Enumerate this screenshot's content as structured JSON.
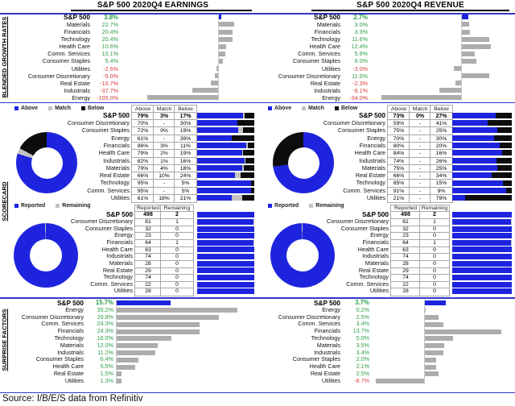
{
  "titles": {
    "earnings": "S&P 500 2020Q4 EARNINGS",
    "revenue": "S&P 500 2020Q4 REVENUE"
  },
  "section_labels": {
    "growth": "BLENDED GROWTH RATES",
    "scorecard": "SCORECARD",
    "surprise": "SURPRISE FACTORS"
  },
  "source": "Source: I/B/E/S data from Refinitiv",
  "legends": {
    "amb": [
      {
        "label": "Above",
        "color_key": "accent_blue"
      },
      {
        "label": "Match",
        "color_key": "match_gray"
      },
      {
        "label": "Below",
        "color_key": "below_black"
      }
    ],
    "rr": [
      {
        "label": "Reported",
        "color_key": "accent_blue"
      },
      {
        "label": "Remaining",
        "color_key": "match_gray"
      }
    ]
  },
  "colors": {
    "accent_blue": "#1e24de",
    "bar_gray": "#adadad",
    "match_gray": "#c3c3c3",
    "below_black": "#0d0d0d",
    "rule_blue": "#3138cd",
    "positive_green": "#2e9e48",
    "negative_red": "#d64040",
    "axis_gray": "#c9c9c9"
  },
  "chart_data": [
    {
      "id": "earnings_blended_growth",
      "type": "bar",
      "orientation": "horizontal",
      "title": "S&P 500 2020Q4 EARNINGS",
      "section": "BLENDED GROWTH RATES",
      "unit": "%",
      "categories": [
        "S&P 500",
        "Materials",
        "Financials",
        "Technology",
        "Health Care",
        "Comm. Services",
        "Consumer Staples",
        "Utilities",
        "Consumer Discretionary",
        "Real Estate",
        "Industrials",
        "Energy"
      ],
      "values": [
        3.8,
        22.7,
        20.4,
        20.4,
        10.6,
        10.1,
        5.4,
        -2.6,
        -5.0,
        -10.7,
        -37.7,
        -105.0
      ],
      "value_labels": [
        "3.8%",
        "22.7%",
        "20.4%",
        "20.4%",
        "10.6%",
        "10.1%",
        "5.4%",
        "-2.6%",
        "-5.0%",
        "-10.7%",
        "-37.7%",
        "-105.0%"
      ]
    },
    {
      "id": "revenue_blended_growth",
      "type": "bar",
      "orientation": "horizontal",
      "title": "S&P 500 2020Q4 REVENUE",
      "section": "BLENDED GROWTH RATES",
      "unit": "%",
      "categories": [
        "S&P 500",
        "Materials",
        "Financials",
        "Technology",
        "Health Care",
        "Comm. Services",
        "Consumer Staples",
        "Utilities",
        "Consumer Discretionary",
        "Real Estate",
        "Industrials",
        "Energy"
      ],
      "values": [
        2.7,
        3.0,
        3.3,
        11.6,
        12.4,
        5.6,
        6.0,
        -3.0,
        11.5,
        -2.3,
        -9.1,
        -34.0
      ],
      "value_labels": [
        "2.7%",
        "3.0%",
        "3.3%",
        "11.6%",
        "12.4%",
        "5.6%",
        "6.0%",
        "-3.0%",
        "11.5%",
        "-2.3%",
        "-9.1%",
        "-34.0%"
      ]
    },
    {
      "id": "earnings_scorecard",
      "type": "table",
      "title": "S&P 500 2020Q4 EARNINGS",
      "section": "SCORECARD",
      "columns": [
        "Above",
        "Match",
        "Below"
      ],
      "rows": [
        {
          "label": "S&P 500",
          "above": 79,
          "match": 3,
          "below": 17,
          "display": [
            "79%",
            "3%",
            "17%"
          ]
        },
        {
          "label": "Consumer Discretionary",
          "above": 70,
          "match": 0,
          "below": 30,
          "display": [
            "70%",
            "-",
            "30%"
          ]
        },
        {
          "label": "Consumer Staples",
          "above": 72,
          "match": 9,
          "below": 19,
          "display": [
            "72%",
            "9%",
            "19%"
          ]
        },
        {
          "label": "Energy",
          "above": 61,
          "match": 0,
          "below": 39,
          "display": [
            "61%",
            "-",
            "39%"
          ]
        },
        {
          "label": "Financials",
          "above": 86,
          "match": 3,
          "below": 11,
          "display": [
            "86%",
            "3%",
            "11%"
          ]
        },
        {
          "label": "Health Care",
          "above": 79,
          "match": 2,
          "below": 19,
          "display": [
            "79%",
            "2%",
            "19%"
          ]
        },
        {
          "label": "Industrials",
          "above": 82,
          "match": 1,
          "below": 16,
          "display": [
            "82%",
            "1%",
            "16%"
          ]
        },
        {
          "label": "Materials",
          "above": 79,
          "match": 4,
          "below": 18,
          "display": [
            "79%",
            "4%",
            "18%"
          ]
        },
        {
          "label": "Real Estate",
          "above": 66,
          "match": 10,
          "below": 24,
          "display": [
            "66%",
            "10%",
            "24%"
          ]
        },
        {
          "label": "Technology",
          "above": 95,
          "match": 0,
          "below": 5,
          "display": [
            "95%",
            "-",
            "5%"
          ]
        },
        {
          "label": "Comm. Services",
          "above": 95,
          "match": 0,
          "below": 5,
          "display": [
            "95%",
            "-",
            "5%"
          ]
        },
        {
          "label": "Utilities",
          "above": 61,
          "match": 18,
          "below": 21,
          "display": [
            "61%",
            "18%",
            "21%"
          ]
        }
      ],
      "donut": {
        "segments": [
          "Above",
          "Match",
          "Below"
        ],
        "values": [
          79,
          3,
          17
        ]
      }
    },
    {
      "id": "revenue_scorecard",
      "type": "table",
      "title": "S&P 500 2020Q4 REVENUE",
      "section": "SCORECARD",
      "columns": [
        "Above",
        "Match",
        "Below"
      ],
      "rows": [
        {
          "label": "S&P 500",
          "above": 73,
          "match": 0,
          "below": 27,
          "display": [
            "73%",
            "0%",
            "27%"
          ]
        },
        {
          "label": "Consumer Discretionary",
          "above": 59,
          "match": 0,
          "below": 41,
          "display": [
            "59%",
            "-",
            "41%"
          ]
        },
        {
          "label": "Consumer Staples",
          "above": 75,
          "match": 0,
          "below": 25,
          "display": [
            "75%",
            "-",
            "25%"
          ]
        },
        {
          "label": "Energy",
          "above": 70,
          "match": 0,
          "below": 30,
          "display": [
            "70%",
            "-",
            "30%"
          ]
        },
        {
          "label": "Financials",
          "above": 80,
          "match": 0,
          "below": 20,
          "display": [
            "80%",
            "-",
            "20%"
          ]
        },
        {
          "label": "Health Care",
          "above": 84,
          "match": 0,
          "below": 16,
          "display": [
            "84%",
            "-",
            "16%"
          ]
        },
        {
          "label": "Industrials",
          "above": 74,
          "match": 0,
          "below": 26,
          "display": [
            "74%",
            "-",
            "26%"
          ]
        },
        {
          "label": "Materials",
          "above": 75,
          "match": 0,
          "below": 25,
          "display": [
            "75%",
            "-",
            "25%"
          ]
        },
        {
          "label": "Real Estate",
          "above": 66,
          "match": 0,
          "below": 34,
          "display": [
            "66%",
            "-",
            "34%"
          ]
        },
        {
          "label": "Technology",
          "above": 85,
          "match": 0,
          "below": 15,
          "display": [
            "85%",
            "-",
            "15%"
          ]
        },
        {
          "label": "Comm. Services",
          "above": 91,
          "match": 0,
          "below": 9,
          "display": [
            "91%",
            "-",
            "9%"
          ]
        },
        {
          "label": "Utilities",
          "above": 21,
          "match": 0,
          "below": 79,
          "display": [
            "21%",
            "-",
            "79%"
          ]
        }
      ],
      "donut": {
        "segments": [
          "Above",
          "Match",
          "Below"
        ],
        "values": [
          73,
          0,
          27
        ]
      }
    },
    {
      "id": "earnings_reported",
      "type": "table",
      "title": "S&P 500 2020Q4 EARNINGS",
      "section": "SCORECARD",
      "columns": [
        "Reported",
        "Remaining"
      ],
      "rows": [
        {
          "label": "S&P 500",
          "reported": 498,
          "remaining": 2
        },
        {
          "label": "Consumer Discretionary",
          "reported": 61,
          "remaining": 1
        },
        {
          "label": "Consumer Staples",
          "reported": 32,
          "remaining": 0
        },
        {
          "label": "Energy",
          "reported": 23,
          "remaining": 0
        },
        {
          "label": "Financials",
          "reported": 64,
          "remaining": 1
        },
        {
          "label": "Health Care",
          "reported": 63,
          "remaining": 0
        },
        {
          "label": "Industrials",
          "reported": 74,
          "remaining": 0
        },
        {
          "label": "Materials",
          "reported": 28,
          "remaining": 0
        },
        {
          "label": "Real Estate",
          "reported": 29,
          "remaining": 0
        },
        {
          "label": "Technology",
          "reported": 74,
          "remaining": 0
        },
        {
          "label": "Comm. Services",
          "reported": 22,
          "remaining": 0
        },
        {
          "label": "Utilities",
          "reported": 28,
          "remaining": 0
        }
      ],
      "donut": {
        "segments": [
          "Reported",
          "Remaining"
        ],
        "values": [
          498,
          2
        ]
      }
    },
    {
      "id": "revenue_reported",
      "type": "table",
      "title": "S&P 500 2020Q4 REVENUE",
      "section": "SCORECARD",
      "columns": [
        "Reported",
        "Remaining"
      ],
      "rows": [
        {
          "label": "S&P 500",
          "reported": 498,
          "remaining": 2
        },
        {
          "label": "Consumer Discretionary",
          "reported": 61,
          "remaining": 1
        },
        {
          "label": "Consumer Staples",
          "reported": 32,
          "remaining": 0
        },
        {
          "label": "Energy",
          "reported": 23,
          "remaining": 0
        },
        {
          "label": "Financials",
          "reported": 64,
          "remaining": 1
        },
        {
          "label": "Health Care",
          "reported": 63,
          "remaining": 0
        },
        {
          "label": "Industrials",
          "reported": 74,
          "remaining": 0
        },
        {
          "label": "Materials",
          "reported": 28,
          "remaining": 0
        },
        {
          "label": "Real Estate",
          "reported": 29,
          "remaining": 0
        },
        {
          "label": "Technology",
          "reported": 74,
          "remaining": 0
        },
        {
          "label": "Comm. Services",
          "reported": 22,
          "remaining": 0
        },
        {
          "label": "Utilities",
          "reported": 28,
          "remaining": 0
        }
      ],
      "donut": {
        "segments": [
          "Reported",
          "Remaining"
        ],
        "values": [
          498,
          2
        ]
      }
    },
    {
      "id": "earnings_surprise",
      "type": "bar",
      "orientation": "horizontal",
      "title": "S&P 500 2020Q4 EARNINGS",
      "section": "SURPRISE FACTORS",
      "unit": "%",
      "categories": [
        "S&P 500",
        "Energy",
        "Consumer Discretionary",
        "Comm. Services",
        "Financials",
        "Technology",
        "Materials",
        "Industrials",
        "Consumer Staples",
        "Health Care",
        "Real Estate",
        "Utilities"
      ],
      "values": [
        15.7,
        35.2,
        29.8,
        24.3,
        24.3,
        16.0,
        12.0,
        11.2,
        6.4,
        5.5,
        1.5,
        1.3
      ],
      "value_labels": [
        "15.7%",
        "35.2%",
        "29.8%",
        "24.3%",
        "24.3%",
        "16.0%",
        "12.0%",
        "11.2%",
        "6.4%",
        "5.5%",
        "1.5%",
        "1.3%"
      ]
    },
    {
      "id": "revenue_surprise",
      "type": "bar",
      "orientation": "horizontal",
      "title": "S&P 500 2020Q4 REVENUE",
      "section": "SURPRISE FACTORS",
      "unit": "%",
      "categories": [
        "S&P 500",
        "Energy",
        "Consumer Discretionary",
        "Comm. Services",
        "Financials",
        "Technology",
        "Materials",
        "Industrials",
        "Consumer Staples",
        "Health Care",
        "Real Estate",
        "Utilities"
      ],
      "values": [
        3.7,
        0.2,
        2.5,
        3.4,
        13.7,
        5.0,
        3.5,
        3.4,
        2.0,
        2.1,
        2.5,
        -8.7
      ],
      "value_labels": [
        "3.7%",
        "0.2%",
        "2.5%",
        "3.4%",
        "13.7%",
        "5.0%",
        "3.5%",
        "3.4%",
        "2.0%",
        "2.1%",
        "2.5%",
        "-8.7%"
      ]
    }
  ]
}
